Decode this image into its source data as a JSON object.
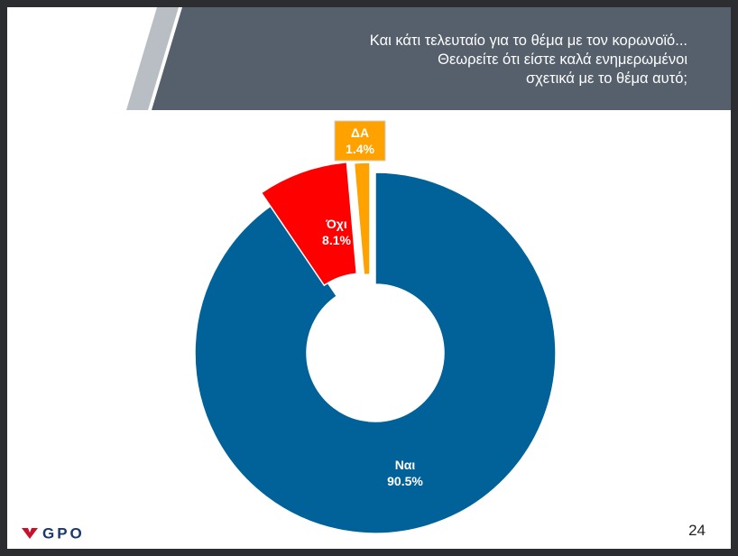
{
  "slide": {
    "title_lines": [
      "Και κάτι τελευταίο για το θέμα με τον κορωνοϊό...",
      "Θεωρείτε ότι είστε καλά ενημερωμένοι",
      "σχετικά με το θέμα αυτό;"
    ],
    "page_number": "24",
    "logo_text": "GPO"
  },
  "colors": {
    "header_band": "#56606c",
    "header_accent": "#b9bec4",
    "accent_red": "#c8102e"
  },
  "chart_data": {
    "type": "pie",
    "style": "donut",
    "categories": [
      "Ναι",
      "Όχι",
      "ΔΑ"
    ],
    "values": [
      90.5,
      8.1,
      1.4
    ],
    "labels": [
      "90.5%",
      "8.1%",
      "1.4%"
    ],
    "colors": [
      "#006299",
      "#ff0000",
      "#ffa200"
    ],
    "exploded": [
      "Όχι",
      "ΔΑ"
    ],
    "title": "",
    "legend": "none"
  }
}
